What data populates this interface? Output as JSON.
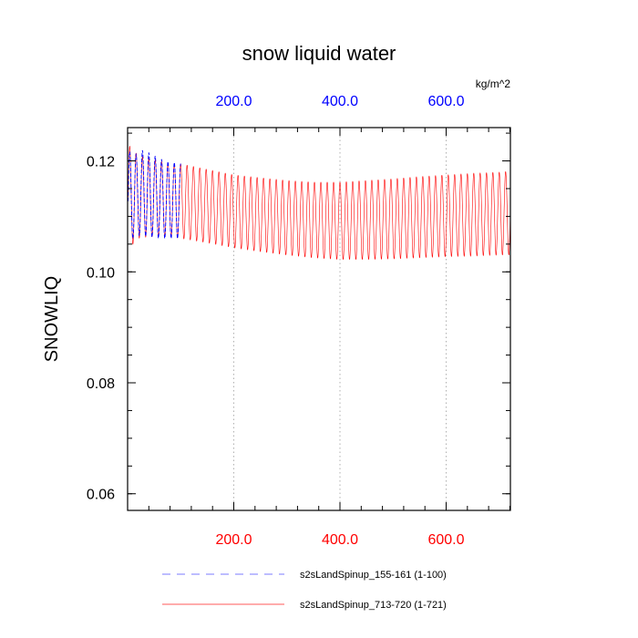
{
  "chart_data": {
    "type": "line",
    "title": "snow liquid water",
    "ylabel": "SNOWLIQ",
    "unit": "kg/m^2",
    "xlim": [
      0,
      721
    ],
    "ylim": [
      0.057,
      0.126
    ],
    "grid": "x-dotted",
    "legend_position": "bottom",
    "y_ticks": [
      {
        "value": 0.06,
        "label": "0.06"
      },
      {
        "value": 0.08,
        "label": "0.08"
      },
      {
        "value": 0.1,
        "label": "0.10"
      },
      {
        "value": 0.12,
        "label": "0.12"
      }
    ],
    "y_minor_step": 0.005,
    "top_ticks": [
      {
        "value": 200,
        "label": "200.0"
      },
      {
        "value": 400,
        "label": "400.0"
      },
      {
        "value": 600,
        "label": "600.0"
      }
    ],
    "bottom_ticks": [
      {
        "value": 200,
        "label": "200.0"
      },
      {
        "value": 400,
        "label": "400.0"
      },
      {
        "value": 600,
        "label": "600.0"
      }
    ],
    "x_minor_step": 40,
    "series": [
      {
        "name": "s2sLandSpinup_713-720 (1-721)",
        "color": "#ff0000",
        "style": "solid",
        "x_range": [
          1,
          721
        ],
        "period": 12,
        "envelope_x": [
          1,
          20,
          40,
          60,
          80,
          100,
          150,
          200,
          250,
          300,
          350,
          400,
          450,
          500,
          550,
          600,
          650,
          700,
          721
        ],
        "envelope_max": [
          0.123,
          0.121,
          0.1205,
          0.12,
          0.1195,
          0.1195,
          0.1185,
          0.1175,
          0.117,
          0.1165,
          0.1162,
          0.1162,
          0.1165,
          0.1168,
          0.1172,
          0.1175,
          0.1178,
          0.118,
          0.1182
        ],
        "envelope_min": [
          0.104,
          0.106,
          0.1063,
          0.1063,
          0.1063,
          0.106,
          0.1052,
          0.1043,
          0.1036,
          0.103,
          0.1025,
          0.1022,
          0.1022,
          0.1023,
          0.1025,
          0.1027,
          0.1028,
          0.103,
          0.103
        ]
      },
      {
        "name": "s2sLandSpinup_155-161 (1-100)",
        "color": "#0000ff",
        "style": "dashed",
        "x_range": [
          1,
          100
        ],
        "period": 12,
        "envelope_x": [
          1,
          10,
          20,
          30,
          40,
          50,
          60,
          70,
          80,
          90,
          100
        ],
        "envelope_max": [
          0.122,
          0.121,
          0.1215,
          0.122,
          0.1215,
          0.121,
          0.1205,
          0.12,
          0.1198,
          0.1197,
          0.1195
        ],
        "envelope_min": [
          0.1035,
          0.106,
          0.1065,
          0.1065,
          0.1063,
          0.1062,
          0.106,
          0.106,
          0.106,
          0.106,
          0.106
        ]
      }
    ]
  },
  "legend": [
    {
      "label": "s2sLandSpinup_155-161 (1-100)",
      "color": "#7b7bff",
      "style": "dashed"
    },
    {
      "label": "s2sLandSpinup_713-720 (1-721)",
      "color": "#ff5a5a",
      "style": "solid"
    }
  ],
  "colors": {
    "top_axis": "#0000ff",
    "bottom_axis": "#ff0000",
    "frame": "#000000",
    "grid": "#b0b0b0"
  }
}
